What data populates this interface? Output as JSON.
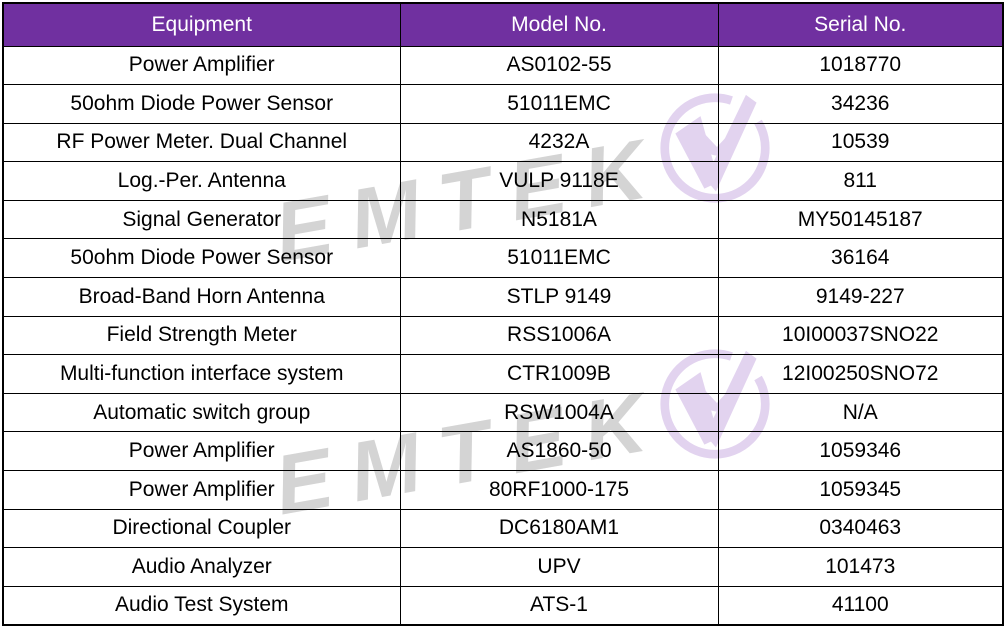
{
  "table": {
    "headers": [
      "Equipment",
      "Model No.",
      "Serial No."
    ],
    "rows": [
      [
        "Power Amplifier",
        "AS0102-55",
        "1018770"
      ],
      [
        "50ohm Diode Power Sensor",
        "51011EMC",
        "34236"
      ],
      [
        "RF Power Meter. Dual Channel",
        "4232A",
        "10539"
      ],
      [
        "Log.-Per. Antenna",
        "VULP 9118E",
        "811"
      ],
      [
        "Signal Generator",
        "N5181A",
        "MY50145187"
      ],
      [
        "50ohm Diode Power Sensor",
        "51011EMC",
        "36164"
      ],
      [
        "Broad-Band Horn Antenna",
        "STLP 9149",
        "9149-227"
      ],
      [
        "Field Strength Meter",
        "RSS1006A",
        "10I00037SNO22"
      ],
      [
        "Multi-function interface system",
        "CTR1009B",
        "12I00250SNO72"
      ],
      [
        "Automatic switch group",
        "RSW1004A",
        "N/A"
      ],
      [
        "Power Amplifier",
        "AS1860-50",
        "1059346"
      ],
      [
        "Power Amplifier",
        "80RF1000-175",
        "1059345"
      ],
      [
        "Directional Coupler",
        "DC6180AM1",
        "0340463"
      ],
      [
        "Audio Analyzer",
        "UPV",
        "101473"
      ],
      [
        "Audio Test System",
        "ATS-1",
        "41100"
      ]
    ]
  },
  "watermark": {
    "text": "EMTEK",
    "text_color": "#d4d4d4",
    "logo_color": "#e2d3ef"
  },
  "colors": {
    "header_bg": "#7030a0",
    "header_text": "#ffffff",
    "border": "#000000",
    "cell_text": "#000000",
    "page_bg": "#ffffff"
  }
}
